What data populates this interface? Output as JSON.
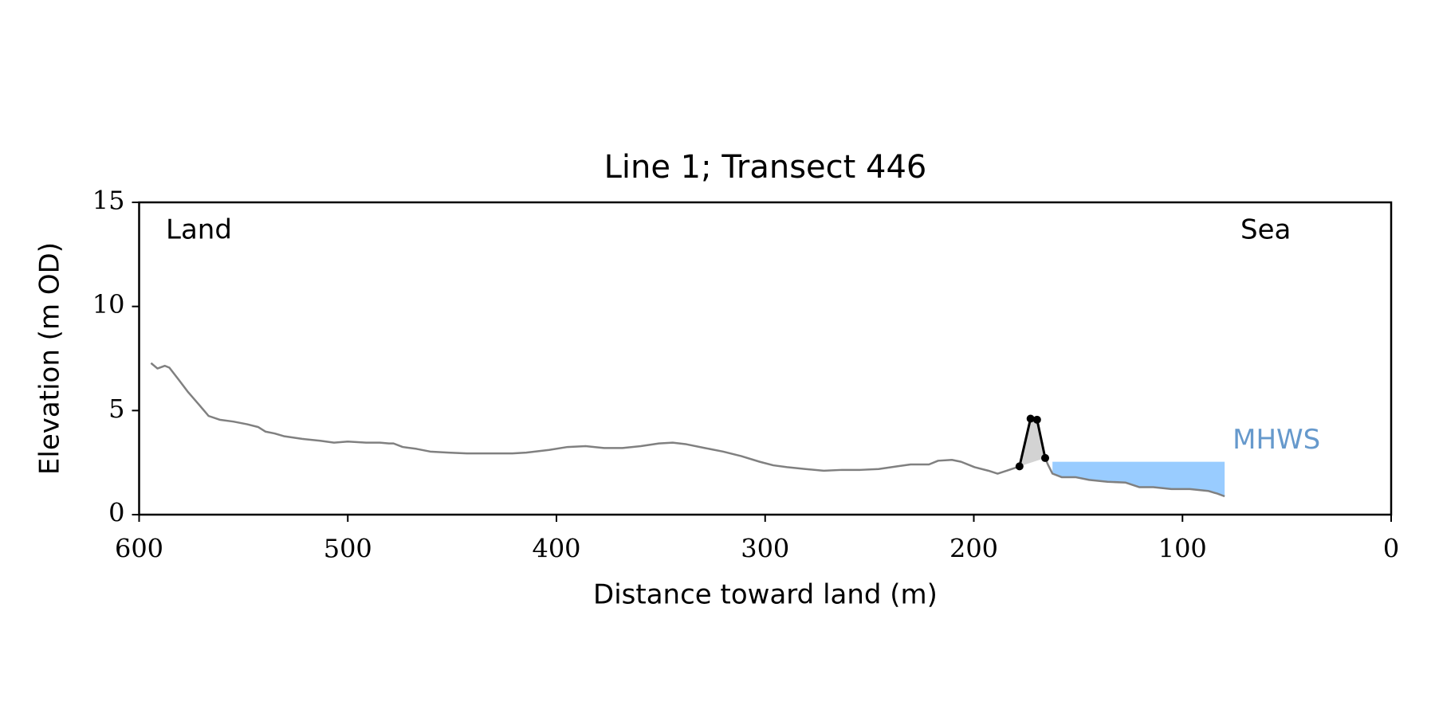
{
  "chart_data": {
    "type": "line",
    "title": "Line 1; Transect 446",
    "xlabel": "Distance toward land (m)",
    "ylabel": "Elevation (m OD)",
    "annotations": [
      "Land",
      "Sea"
    ],
    "xlim": [
      600,
      0
    ],
    "xticks": [
      600,
      500,
      400,
      300,
      200,
      100,
      0
    ],
    "ylim": [
      0,
      15
    ],
    "yticks": [
      0,
      5,
      10,
      15
    ],
    "series": [
      {
        "color": "#808080",
        "x": [
          594.3,
          591.2,
          587.7,
          585.5,
          581.1,
          576.8,
          571.1,
          566.7,
          561.4,
          554.8,
          548.2,
          543.0,
          539.5,
          535.1,
          530.7,
          521.9,
          513.2,
          506.6,
          500.0,
          491.2,
          484.6,
          480.3,
          478.1,
          473.7,
          467.1,
          460.5,
          451.8,
          443.0,
          429.8,
          421.1,
          414.5,
          403.5,
          394.7,
          386.0,
          377.2,
          368.4,
          359.6,
          350.9,
          344.3,
          337.7,
          328.9,
          320.2,
          311.4,
          302.6,
          296.1,
          289.5,
          280.7,
          271.9,
          263.2,
          254.4,
          245.6,
          236.8,
          230.3,
          221.5,
          217.1,
          210.5,
          206.1,
          199.6,
          193.0,
          188.6,
          184.2,
          178.1,
          172.8,
          169.7,
          165.8,
          164.5,
          162.3,
          157.9,
          151.3,
          144.7,
          135.9,
          127.2,
          120.6,
          114.0,
          105.3,
          96.5,
          87.7,
          83.3,
          79.8
        ],
        "values": [
          7.28,
          7.02,
          7.15,
          7.06,
          6.49,
          5.92,
          5.26,
          4.74,
          4.56,
          4.47,
          4.34,
          4.21,
          3.99,
          3.9,
          3.77,
          3.64,
          3.55,
          3.46,
          3.51,
          3.46,
          3.46,
          3.42,
          3.42,
          3.25,
          3.16,
          3.03,
          2.98,
          2.94,
          2.94,
          2.94,
          2.98,
          3.11,
          3.25,
          3.29,
          3.2,
          3.2,
          3.29,
          3.42,
          3.46,
          3.38,
          3.2,
          3.03,
          2.81,
          2.54,
          2.37,
          2.28,
          2.19,
          2.11,
          2.15,
          2.15,
          2.19,
          2.32,
          2.41,
          2.41,
          2.59,
          2.63,
          2.54,
          2.28,
          2.11,
          1.97,
          2.11,
          2.32,
          4.61,
          4.56,
          2.72,
          2.41,
          1.97,
          1.8,
          1.8,
          1.67,
          1.58,
          1.54,
          1.32,
          1.32,
          1.23,
          1.23,
          1.14,
          1.01,
          0.88
        ]
      },
      {
        "color": "#000000",
        "fill": "#d3d3d3",
        "markers": true,
        "x": [
          178.1,
          172.8,
          169.7,
          165.8
        ],
        "values": [
          2.32,
          4.61,
          4.56,
          2.72
        ]
      }
    ],
    "mhws": {
      "label": "MHWS",
      "value": 2.54,
      "x": [
        162.3,
        79.8
      ],
      "color": "#99ccff",
      "label_color": "#6699cc"
    }
  }
}
